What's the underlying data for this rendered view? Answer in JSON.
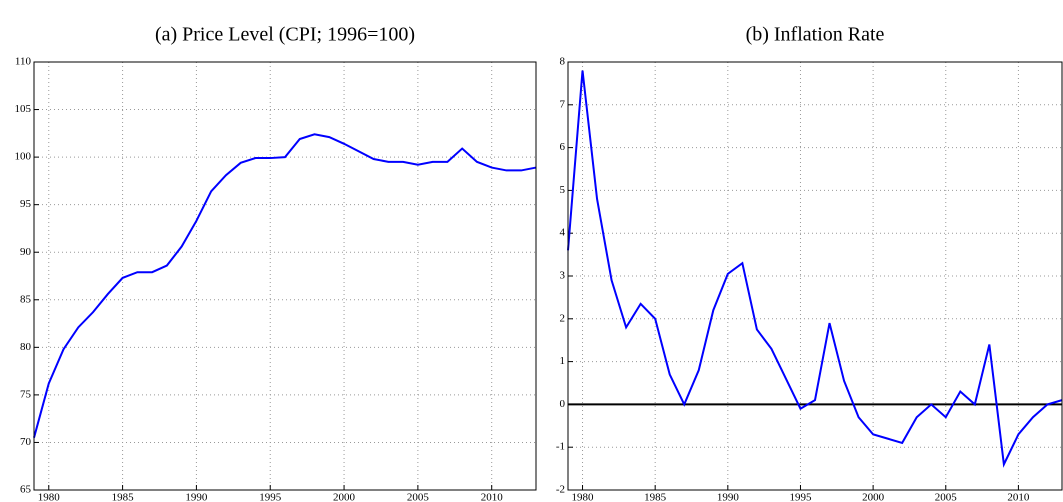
{
  "chart_data": [
    {
      "type": "line",
      "title": "(a) Price Level (CPI; 1996=100)",
      "x": [
        1979,
        1980,
        1981,
        1982,
        1983,
        1984,
        1985,
        1986,
        1987,
        1988,
        1989,
        1990,
        1991,
        1992,
        1993,
        1994,
        1995,
        1996,
        1997,
        1998,
        1999,
        2000,
        2001,
        2002,
        2003,
        2004,
        2005,
        2006,
        2007,
        2008,
        2009,
        2010,
        2011,
        2012,
        2013
      ],
      "series": [
        {
          "color": "#0000ff",
          "values": [
            70.5,
            76.2,
            79.8,
            82.1,
            83.7,
            85.6,
            87.3,
            87.9,
            87.9,
            88.6,
            90.6,
            93.3,
            96.4,
            98.1,
            99.4,
            99.9,
            99.9,
            100.0,
            101.9,
            102.4,
            102.1,
            101.4,
            100.6,
            99.8,
            99.5,
            99.5,
            99.2,
            99.5,
            99.5,
            100.9,
            99.5,
            98.9,
            98.6,
            98.6,
            98.9
          ]
        }
      ],
      "xlim": [
        1979,
        2013
      ],
      "xticks": [
        1980,
        1985,
        1990,
        1995,
        2000,
        2005,
        2010
      ],
      "ylim": [
        65,
        110
      ],
      "yticks": [
        65,
        70,
        75,
        80,
        85,
        90,
        95,
        100,
        105,
        110
      ],
      "grid": true
    },
    {
      "type": "line",
      "title": "(b) Inflation Rate",
      "x": [
        1979,
        1980,
        1981,
        1982,
        1983,
        1984,
        1985,
        1986,
        1987,
        1988,
        1989,
        1990,
        1991,
        1992,
        1993,
        1994,
        1995,
        1996,
        1997,
        1998,
        1999,
        2000,
        2001,
        2002,
        2003,
        2004,
        2005,
        2006,
        2007,
        2008,
        2009,
        2010,
        2011,
        2012,
        2013
      ],
      "series": [
        {
          "color": "#0000ff",
          "values": [
            3.6,
            7.8,
            4.8,
            2.9,
            1.8,
            2.35,
            2.0,
            0.7,
            0.0,
            0.8,
            2.2,
            3.05,
            3.3,
            1.75,
            1.3,
            0.6,
            -0.1,
            0.1,
            1.9,
            0.55,
            -0.3,
            -0.7,
            -0.8,
            -0.9,
            -0.3,
            0.0,
            -0.3,
            0.3,
            0.0,
            1.4,
            -1.4,
            -0.7,
            -0.3,
            0.0,
            0.1
          ]
        }
      ],
      "xlim": [
        1979,
        2013
      ],
      "xticks": [
        1980,
        1985,
        1990,
        1995,
        2000,
        2005,
        2010
      ],
      "ylim": [
        -2,
        8
      ],
      "yticks": [
        -2,
        -1,
        0,
        1,
        2,
        3,
        4,
        5,
        6,
        7,
        8
      ],
      "grid": true,
      "hline": 0
    }
  ]
}
